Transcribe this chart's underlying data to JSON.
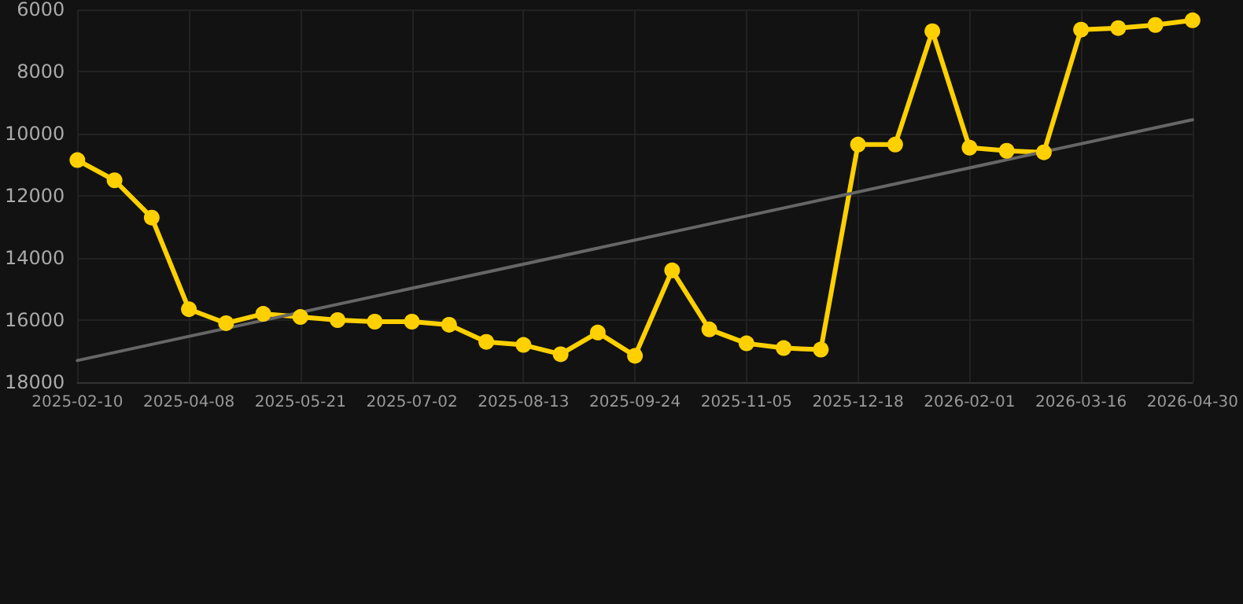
{
  "chart_data": {
    "type": "line",
    "categories": [
      "2025-02-10",
      null,
      null,
      "2025-04-08",
      null,
      null,
      "2025-05-21",
      null,
      null,
      "2025-07-02",
      null,
      null,
      "2025-08-13",
      null,
      null,
      "2025-09-24",
      null,
      null,
      "2025-11-05",
      null,
      null,
      "2025-12-18",
      null,
      null,
      "2026-02-01",
      null,
      null,
      "2026-03-16",
      null,
      null,
      "2026-04-30"
    ],
    "series": [
      {
        "color": "#ffd000",
        "marker": "circle",
        "values": [
          10850,
          11500,
          12700,
          15650,
          16100,
          15800,
          15900,
          16000,
          16050,
          16050,
          16150,
          16700,
          16800,
          17100,
          16400,
          17150,
          14400,
          16300,
          16750,
          16900,
          16950,
          10350,
          10350,
          6700,
          10450,
          10550,
          10600,
          6650,
          6600,
          6500,
          6350
        ]
      },
      {
        "color": "#666666",
        "marker": "none",
        "values": [
          17300,
          null,
          null,
          null,
          null,
          null,
          null,
          null,
          null,
          null,
          null,
          null,
          null,
          null,
          null,
          null,
          null,
          null,
          null,
          null,
          null,
          null,
          null,
          null,
          null,
          null,
          null,
          null,
          null,
          null,
          9550
        ]
      }
    ],
    "ylim": [
      18000,
      6000
    ],
    "yticks": [
      6000,
      8000,
      10000,
      12000,
      14000,
      16000,
      18000
    ],
    "grid": true,
    "line_style": "solid"
  }
}
